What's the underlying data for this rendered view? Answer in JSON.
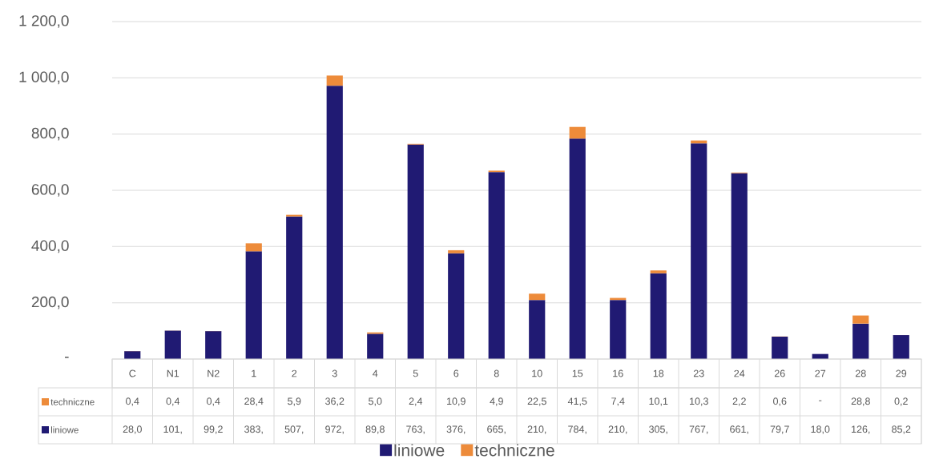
{
  "chart_data": {
    "type": "bar",
    "stacked": true,
    "categories": [
      "C",
      "N1",
      "N2",
      "1",
      "2",
      "3",
      "4",
      "5",
      "6",
      "8",
      "10",
      "15",
      "16",
      "18",
      "23",
      "24",
      "26",
      "27",
      "28",
      "29"
    ],
    "series": [
      {
        "name": "liniowe",
        "color": "#201a73",
        "values": [
          28.0,
          101,
          99.2,
          383,
          507,
          972,
          89.8,
          763,
          376,
          665,
          210,
          784,
          210,
          305,
          767,
          661,
          79.7,
          18.0,
          126,
          85.2
        ],
        "value_labels": [
          "28,0",
          "101,",
          "99,2",
          "383,",
          "507,",
          "972,",
          "89,8",
          "763,",
          "376,",
          "665,",
          "210,",
          "784,",
          "210,",
          "305,",
          "767,",
          "661,",
          "79,7",
          "18,0",
          "126,",
          "85,2"
        ]
      },
      {
        "name": "techniczne",
        "color": "#ed8b3a",
        "values": [
          0.4,
          0.4,
          0.4,
          28.4,
          5.9,
          36.2,
          5.0,
          2.4,
          10.9,
          4.9,
          22.5,
          41.5,
          7.4,
          10.1,
          10.3,
          2.2,
          0.6,
          null,
          28.8,
          0.2
        ],
        "value_labels": [
          "0,4",
          "0,4",
          "0,4",
          "28,4",
          "5,9",
          "36,2",
          "5,0",
          "2,4",
          "10,9",
          "4,9",
          "22,5",
          "41,5",
          "7,4",
          "10,1",
          "10,3",
          "2,2",
          "0,6",
          "-",
          "28,8",
          "0,2"
        ]
      }
    ],
    "ylim": [
      0,
      1200
    ],
    "yticks": [
      {
        "value": 0,
        "label": "-"
      },
      {
        "value": 200,
        "label": "200,0"
      },
      {
        "value": 400,
        "label": "400,0"
      },
      {
        "value": 600,
        "label": "600,0"
      },
      {
        "value": 800,
        "label": "800,0"
      },
      {
        "value": 1000,
        "label": "1 000,0"
      },
      {
        "value": 1200,
        "label": "1 200,0"
      }
    ],
    "grid": "y",
    "legend": "bottom"
  }
}
